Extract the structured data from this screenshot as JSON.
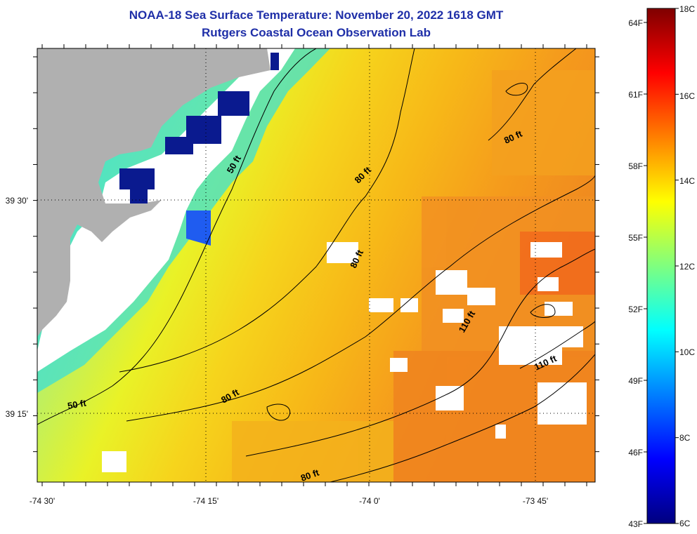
{
  "title": "NOAA-18 Sea Surface Temperature:  November 20, 2022 1618 GMT",
  "subtitle": "Rutgers Coastal Ocean Observation Lab",
  "map": {
    "lon_labels": [
      "-74 30'",
      "-74 15'",
      "-74 0'",
      "-73 45'"
    ],
    "lat_labels": [
      "39 30'",
      "39 15'"
    ],
    "land_color": "#b0b0b0",
    "cloud_color": "#ffffff",
    "contour_labels": [
      "50 ft",
      "80 ft",
      "80 ft",
      "80 ft",
      "50 ft",
      "80 ft",
      "80 ft",
      "110 ft",
      "110 ft"
    ]
  },
  "colorbar": {
    "fahrenheit_labels": [
      "64F",
      "61F",
      "58F",
      "55F",
      "52F",
      "49F",
      "46F",
      "43F"
    ],
    "celsius_labels": [
      "18C",
      "16C",
      "14C",
      "12C",
      "10C",
      "8C",
      "6C"
    ],
    "min_c": 6,
    "max_c": 18
  }
}
